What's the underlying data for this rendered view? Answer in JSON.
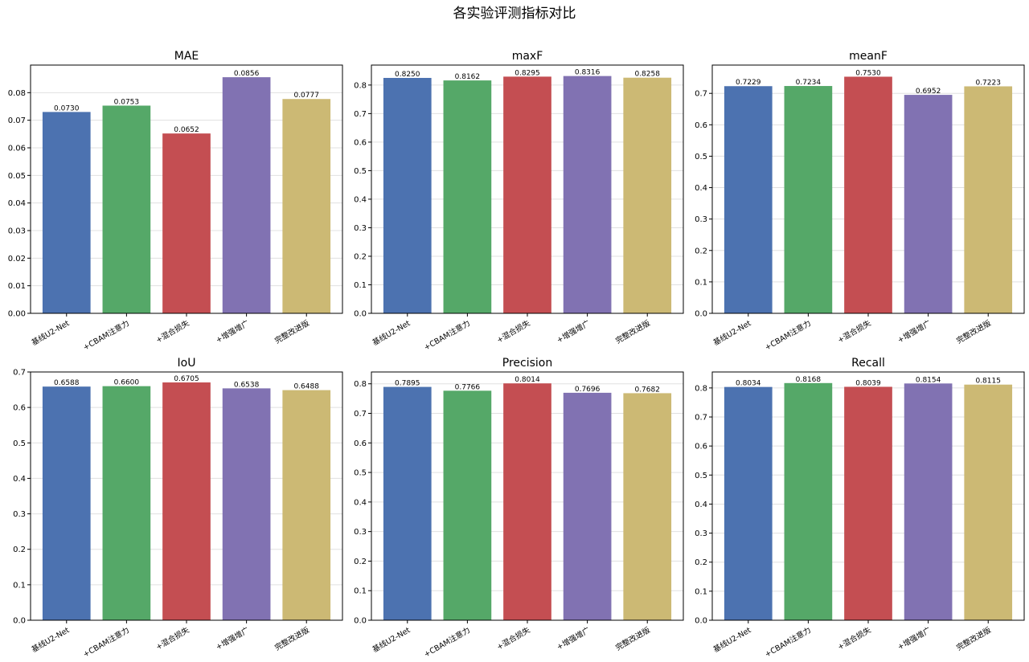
{
  "suptitle": "各实验评测指标对比",
  "colors": [
    "#4c72b0",
    "#55a868",
    "#c44e52",
    "#8172b2",
    "#ccb974"
  ],
  "chart_data": [
    {
      "type": "bar",
      "title": "MAE",
      "categories": [
        "基线U2-Net",
        "+CBAM注意力",
        "+混合损失",
        "+增强增广",
        "完整改进版"
      ],
      "values": [
        0.073,
        0.0753,
        0.0652,
        0.0856,
        0.0777
      ],
      "value_labels": [
        "0.0730",
        "0.0753",
        "0.0652",
        "0.0856",
        "0.0777"
      ],
      "ylim": [
        0,
        0.09
      ],
      "yticks": [
        0,
        0.01,
        0.02,
        0.03,
        0.04,
        0.05,
        0.06,
        0.07,
        0.08
      ],
      "ytick_labels": [
        "0.00",
        "0.01",
        "0.02",
        "0.03",
        "0.04",
        "0.05",
        "0.06",
        "0.07",
        "0.08"
      ],
      "grid": true
    },
    {
      "type": "bar",
      "title": "maxF",
      "categories": [
        "基线U2-Net",
        "+CBAM注意力",
        "+混合损失",
        "+增强增广",
        "完整改进版"
      ],
      "values": [
        0.825,
        0.8162,
        0.8295,
        0.8316,
        0.8258
      ],
      "value_labels": [
        "0.8250",
        "0.8162",
        "0.8295",
        "0.8316",
        "0.8258"
      ],
      "ylim": [
        0,
        0.87
      ],
      "yticks": [
        0,
        0.1,
        0.2,
        0.3,
        0.4,
        0.5,
        0.6,
        0.7,
        0.8
      ],
      "ytick_labels": [
        "0.0",
        "0.1",
        "0.2",
        "0.3",
        "0.4",
        "0.5",
        "0.6",
        "0.7",
        "0.8"
      ],
      "grid": true
    },
    {
      "type": "bar",
      "title": "meanF",
      "categories": [
        "基线U2-Net",
        "+CBAM注意力",
        "+混合损失",
        "+增强增广",
        "完整改进版"
      ],
      "values": [
        0.7229,
        0.7234,
        0.753,
        0.6952,
        0.7223
      ],
      "value_labels": [
        "0.7229",
        "0.7234",
        "0.7530",
        "0.6952",
        "0.7223"
      ],
      "ylim": [
        0,
        0.79
      ],
      "yticks": [
        0,
        0.1,
        0.2,
        0.3,
        0.4,
        0.5,
        0.6,
        0.7
      ],
      "ytick_labels": [
        "0.0",
        "0.1",
        "0.2",
        "0.3",
        "0.4",
        "0.5",
        "0.6",
        "0.7"
      ],
      "grid": true
    },
    {
      "type": "bar",
      "title": "IoU",
      "categories": [
        "基线U2-Net",
        "+CBAM注意力",
        "+混合损失",
        "+增强增广",
        "完整改进版"
      ],
      "values": [
        0.6588,
        0.66,
        0.6705,
        0.6538,
        0.6488
      ],
      "value_labels": [
        "0.6588",
        "0.6600",
        "0.6705",
        "0.6538",
        "0.6488"
      ],
      "ylim": [
        0,
        0.7
      ],
      "yticks": [
        0,
        0.1,
        0.2,
        0.3,
        0.4,
        0.5,
        0.6,
        0.7
      ],
      "ytick_labels": [
        "0.0",
        "0.1",
        "0.2",
        "0.3",
        "0.4",
        "0.5",
        "0.6",
        "0.7"
      ],
      "grid": true
    },
    {
      "type": "bar",
      "title": "Precision",
      "categories": [
        "基线U2-Net",
        "+CBAM注意力",
        "+混合损失",
        "+增强增广",
        "完整改进版"
      ],
      "values": [
        0.7895,
        0.7766,
        0.8014,
        0.7696,
        0.7682
      ],
      "value_labels": [
        "0.7895",
        "0.7766",
        "0.8014",
        "0.7696",
        "0.7682"
      ],
      "ylim": [
        0,
        0.84
      ],
      "yticks": [
        0,
        0.1,
        0.2,
        0.3,
        0.4,
        0.5,
        0.6,
        0.7,
        0.8
      ],
      "ytick_labels": [
        "0.0",
        "0.1",
        "0.2",
        "0.3",
        "0.4",
        "0.5",
        "0.6",
        "0.7",
        "0.8"
      ],
      "grid": true
    },
    {
      "type": "bar",
      "title": "Recall",
      "categories": [
        "基线U2-Net",
        "+CBAM注意力",
        "+混合损失",
        "+增强增广",
        "完整改进版"
      ],
      "values": [
        0.8034,
        0.8168,
        0.8039,
        0.8154,
        0.8115
      ],
      "value_labels": [
        "0.8034",
        "0.8168",
        "0.8039",
        "0.8154",
        "0.8115"
      ],
      "ylim": [
        0,
        0.855
      ],
      "yticks": [
        0,
        0.1,
        0.2,
        0.3,
        0.4,
        0.5,
        0.6,
        0.7,
        0.8
      ],
      "ytick_labels": [
        "0.0",
        "0.1",
        "0.2",
        "0.3",
        "0.4",
        "0.5",
        "0.6",
        "0.7",
        "0.8"
      ],
      "grid": true
    }
  ]
}
